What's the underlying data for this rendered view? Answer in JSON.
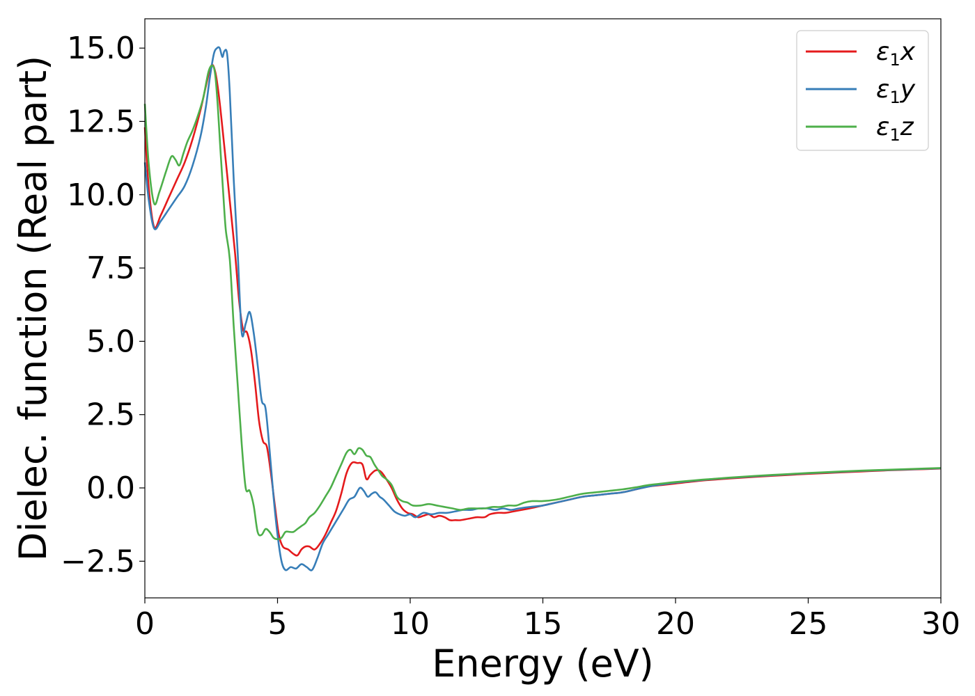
{
  "chart_data": {
    "type": "line",
    "xlabel": "Energy (eV)",
    "ylabel": "Dielec. function (Real part)",
    "xlim": [
      0,
      30
    ],
    "ylim": [
      -3.75,
      16.0
    ],
    "xticks": [
      0,
      5,
      10,
      15,
      20,
      25,
      30
    ],
    "xtick_labels": [
      "0",
      "5",
      "10",
      "15",
      "20",
      "25",
      "30"
    ],
    "yticks": [
      -2.5,
      0.0,
      2.5,
      5.0,
      7.5,
      10.0,
      12.5,
      15.0
    ],
    "ytick_labels": [
      "−2.5",
      "0.0",
      "2.5",
      "5.0",
      "7.5",
      "10.0",
      "12.5",
      "15.0"
    ],
    "grid": false,
    "legend_position": "top-right",
    "series": [
      {
        "name": "ε1x",
        "label_main": "ε",
        "label_sub": "1",
        "label_tail": "x",
        "color": "#e41a1c",
        "x": [
          0,
          0.15,
          0.35,
          0.6,
          0.9,
          1.2,
          1.5,
          1.8,
          2.1,
          2.3,
          2.5,
          2.65,
          2.8,
          3.0,
          3.2,
          3.4,
          3.55,
          3.7,
          3.85,
          4.0,
          4.15,
          4.3,
          4.45,
          4.6,
          4.75,
          4.9,
          5.05,
          5.2,
          5.4,
          5.6,
          5.75,
          5.9,
          6.05,
          6.2,
          6.4,
          6.6,
          6.8,
          7.0,
          7.2,
          7.4,
          7.6,
          7.8,
          8.0,
          8.2,
          8.35,
          8.5,
          8.7,
          8.9,
          9.1,
          9.3,
          9.5,
          9.7,
          9.9,
          10.1,
          10.3,
          10.5,
          10.7,
          10.9,
          11.1,
          11.3,
          11.5,
          11.7,
          11.9,
          12.2,
          12.5,
          12.8,
          13.0,
          13.3,
          13.6,
          13.9,
          14.2,
          14.5,
          15.0,
          15.5,
          16.0,
          16.5,
          17.0,
          17.5,
          18.0,
          18.5,
          19.0,
          19.5,
          20.0,
          21.0,
          22.0,
          23.0,
          24.0,
          25.0,
          26.0,
          27.0,
          28.0,
          29.0,
          30.0
        ],
        "y": [
          12.3,
          10.2,
          8.9,
          9.3,
          9.9,
          10.5,
          11.1,
          11.9,
          12.9,
          13.7,
          14.4,
          14.2,
          13.3,
          11.6,
          9.8,
          8.0,
          6.4,
          5.4,
          5.3,
          4.7,
          3.6,
          2.3,
          1.6,
          1.4,
          0.5,
          -0.6,
          -1.6,
          -2.0,
          -2.1,
          -2.25,
          -2.3,
          -2.1,
          -2.0,
          -2.0,
          -2.1,
          -1.9,
          -1.6,
          -1.2,
          -0.8,
          -0.2,
          0.5,
          0.85,
          0.85,
          0.8,
          0.3,
          0.45,
          0.6,
          0.55,
          0.3,
          0.0,
          -0.4,
          -0.7,
          -0.85,
          -0.9,
          -1.0,
          -0.95,
          -0.9,
          -1.0,
          -0.95,
          -1.0,
          -1.1,
          -1.1,
          -1.1,
          -1.05,
          -1.0,
          -1.0,
          -0.9,
          -0.85,
          -0.85,
          -0.8,
          -0.75,
          -0.7,
          -0.6,
          -0.5,
          -0.4,
          -0.3,
          -0.25,
          -0.2,
          -0.15,
          -0.05,
          0.05,
          0.1,
          0.15,
          0.25,
          0.32,
          0.38,
          0.43,
          0.48,
          0.52,
          0.56,
          0.6,
          0.63,
          0.66
        ]
      },
      {
        "name": "ε1y",
        "label_main": "ε",
        "label_sub": "1",
        "label_tail": "y",
        "color": "#377eb8",
        "x": [
          0,
          0.15,
          0.35,
          0.6,
          0.9,
          1.2,
          1.5,
          1.8,
          2.1,
          2.3,
          2.45,
          2.6,
          2.72,
          2.82,
          2.92,
          3.0,
          3.1,
          3.2,
          3.35,
          3.5,
          3.65,
          3.8,
          3.95,
          4.1,
          4.25,
          4.4,
          4.55,
          4.7,
          4.85,
          5.0,
          5.15,
          5.3,
          5.5,
          5.7,
          5.9,
          6.1,
          6.3,
          6.5,
          6.7,
          6.9,
          7.1,
          7.3,
          7.5,
          7.7,
          7.9,
          8.1,
          8.25,
          8.4,
          8.55,
          8.7,
          8.85,
          9.0,
          9.2,
          9.4,
          9.6,
          9.8,
          10.0,
          10.2,
          10.5,
          10.8,
          11.1,
          11.4,
          11.7,
          12.0,
          12.3,
          12.6,
          12.9,
          13.2,
          13.5,
          13.8,
          14.1,
          14.5,
          15.0,
          15.5,
          16.0,
          16.5,
          17.0,
          17.5,
          18.0,
          18.5,
          19.0,
          19.5,
          20.0,
          21.0,
          22.0,
          23.0,
          24.0,
          25.0,
          26.0,
          27.0,
          28.0,
          29.0,
          30.0
        ],
        "y": [
          11.1,
          9.8,
          8.85,
          9.1,
          9.5,
          9.9,
          10.3,
          11.0,
          12.0,
          13.0,
          14.0,
          14.8,
          15.0,
          15.0,
          14.7,
          14.9,
          14.8,
          13.5,
          10.5,
          8.0,
          5.3,
          5.6,
          6.0,
          5.3,
          4.2,
          3.0,
          2.7,
          1.3,
          -0.3,
          -1.6,
          -2.5,
          -2.8,
          -2.7,
          -2.75,
          -2.6,
          -2.7,
          -2.8,
          -2.4,
          -1.9,
          -1.6,
          -1.3,
          -1.0,
          -0.7,
          -0.4,
          -0.3,
          0.0,
          -0.1,
          -0.3,
          -0.2,
          -0.15,
          -0.3,
          -0.4,
          -0.6,
          -0.8,
          -0.9,
          -0.95,
          -0.9,
          -1.0,
          -0.85,
          -0.9,
          -0.85,
          -0.85,
          -0.8,
          -0.75,
          -0.75,
          -0.7,
          -0.7,
          -0.75,
          -0.7,
          -0.75,
          -0.7,
          -0.65,
          -0.6,
          -0.5,
          -0.4,
          -0.3,
          -0.25,
          -0.2,
          -0.15,
          -0.05,
          0.05,
          0.12,
          0.18,
          0.27,
          0.34,
          0.4,
          0.45,
          0.5,
          0.54,
          0.58,
          0.61,
          0.64,
          0.67
        ]
      },
      {
        "name": "ε1z",
        "label_main": "ε",
        "label_sub": "1",
        "label_tail": "z",
        "color": "#4daf4a",
        "x": [
          0,
          0.15,
          0.35,
          0.55,
          0.8,
          1.0,
          1.15,
          1.3,
          1.45,
          1.6,
          1.8,
          2.0,
          2.2,
          2.4,
          2.55,
          2.65,
          2.75,
          2.85,
          2.95,
          3.05,
          3.2,
          3.35,
          3.5,
          3.65,
          3.8,
          3.95,
          4.1,
          4.25,
          4.4,
          4.55,
          4.7,
          4.85,
          5.0,
          5.15,
          5.3,
          5.45,
          5.6,
          5.75,
          5.9,
          6.05,
          6.2,
          6.4,
          6.6,
          6.8,
          7.0,
          7.2,
          7.4,
          7.6,
          7.75,
          7.9,
          8.05,
          8.2,
          8.35,
          8.5,
          8.65,
          8.8,
          8.95,
          9.1,
          9.3,
          9.5,
          9.7,
          9.9,
          10.1,
          10.4,
          10.7,
          11.0,
          11.3,
          11.6,
          11.9,
          12.2,
          12.5,
          12.8,
          13.1,
          13.4,
          13.7,
          14.0,
          14.3,
          14.6,
          15.0,
          15.5,
          16.0,
          16.5,
          17.0,
          17.5,
          18.0,
          18.5,
          19.0,
          19.5,
          20.0,
          21.0,
          22.0,
          23.0,
          24.0,
          25.0,
          26.0,
          27.0,
          28.0,
          29.0,
          30.0
        ],
        "y": [
          13.1,
          11.0,
          9.7,
          10.1,
          10.8,
          11.3,
          11.2,
          11.0,
          11.4,
          11.8,
          12.2,
          12.7,
          13.3,
          14.2,
          14.4,
          14.1,
          13.0,
          11.5,
          10.1,
          8.8,
          7.8,
          5.5,
          3.5,
          1.5,
          0.0,
          -0.1,
          -0.6,
          -1.5,
          -1.6,
          -1.4,
          -1.5,
          -1.7,
          -1.75,
          -1.7,
          -1.5,
          -1.5,
          -1.5,
          -1.4,
          -1.3,
          -1.2,
          -1.0,
          -0.85,
          -0.6,
          -0.3,
          0.0,
          0.4,
          0.8,
          1.2,
          1.3,
          1.15,
          1.35,
          1.3,
          1.1,
          1.05,
          0.8,
          0.6,
          0.4,
          0.3,
          0.1,
          -0.3,
          -0.45,
          -0.5,
          -0.6,
          -0.6,
          -0.55,
          -0.6,
          -0.65,
          -0.7,
          -0.75,
          -0.7,
          -0.7,
          -0.7,
          -0.65,
          -0.65,
          -0.6,
          -0.6,
          -0.5,
          -0.45,
          -0.45,
          -0.4,
          -0.3,
          -0.2,
          -0.15,
          -0.1,
          -0.05,
          0.02,
          0.1,
          0.15,
          0.2,
          0.28,
          0.35,
          0.41,
          0.46,
          0.51,
          0.55,
          0.59,
          0.62,
          0.65,
          0.68
        ]
      }
    ]
  }
}
